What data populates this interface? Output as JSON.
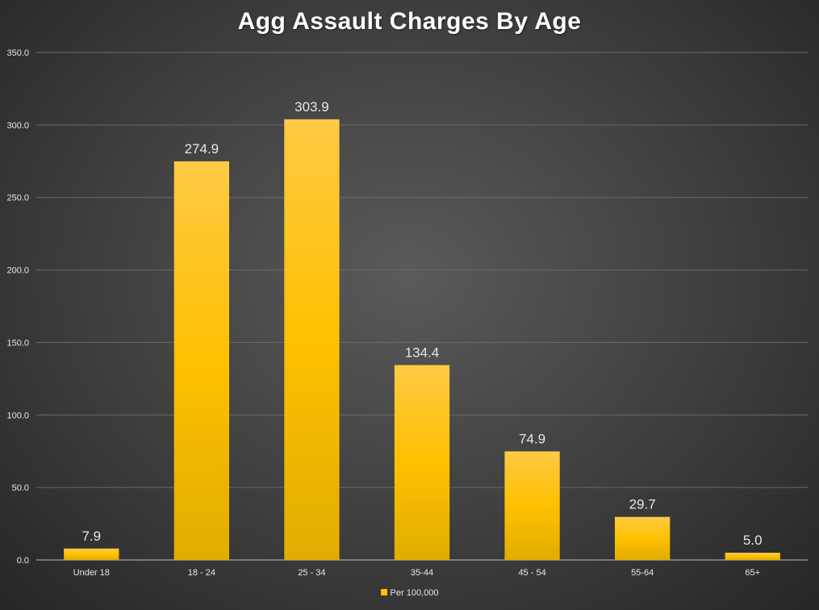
{
  "chart_data": {
    "type": "bar",
    "title": "Agg Assault Charges By Age",
    "xlabel": "",
    "ylabel": "",
    "categories": [
      "Under 18",
      "18 - 24",
      "25 - 34",
      "35-44",
      "45 - 54",
      "55-64",
      "65+"
    ],
    "series": [
      {
        "name": "Per 100,000",
        "values": [
          7.9,
          274.9,
          303.9,
          134.4,
          74.9,
          29.7,
          5.0
        ]
      }
    ],
    "data_labels": [
      "7.9",
      "274.9",
      "303.9",
      "134.4",
      "74.9",
      "29.7",
      "5.0"
    ],
    "ylim": [
      0,
      350
    ],
    "yticks": [
      0,
      50,
      100,
      150,
      200,
      250,
      300,
      350
    ],
    "ytick_labels": [
      "0.0",
      "50.0",
      "100.0",
      "150.0",
      "200.0",
      "250.0",
      "300.0",
      "350.0"
    ],
    "grid": true,
    "legend_position": "bottom",
    "bar_color": "#ffc000"
  }
}
